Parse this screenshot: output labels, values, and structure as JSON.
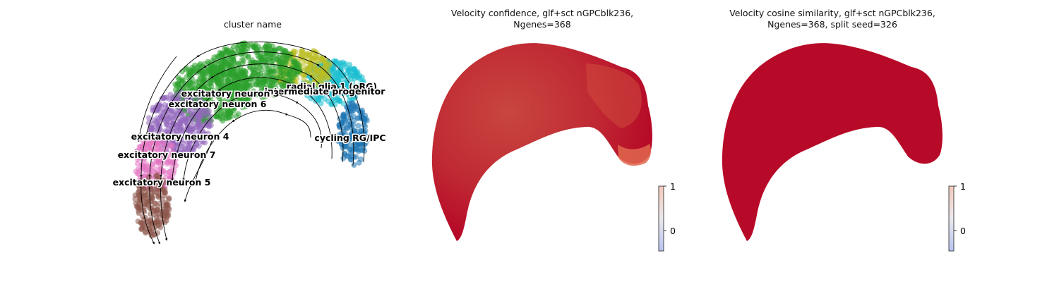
{
  "chart_data": [
    {
      "type": "scatter",
      "title": "cluster name",
      "stream_arrows": true,
      "legend": "on data",
      "clusters": [
        {
          "name": "radial glia 1 (oRG)",
          "color": "#17becf"
        },
        {
          "name": "intermediate progenitor",
          "color": "#bcbd22"
        },
        {
          "name": "excitatory neuron 3",
          "color": "#2ca02c"
        },
        {
          "name": "excitatory neuron 6",
          "color": "#2ca02c"
        },
        {
          "name": "excitatory neuron 4",
          "color": "#9467bd"
        },
        {
          "name": "excitatory neuron 7",
          "color": "#e377c2"
        },
        {
          "name": "excitatory neuron 5",
          "color": "#8c564b"
        },
        {
          "name": "cycling RG/IPC",
          "color": "#1f77b4"
        }
      ],
      "label_texts": [
        {
          "key": "rg",
          "text": "radial glia 1 (oRG)"
        },
        {
          "key": "ip",
          "text": "intermediate progenitor"
        },
        {
          "key": "en3",
          "text": "excitatory neuron 3"
        },
        {
          "key": "en6",
          "text": "excitatory neuron 6"
        },
        {
          "key": "en4",
          "text": "excitatory neuron 4"
        },
        {
          "key": "en7",
          "text": "excitatory neuron 7"
        },
        {
          "key": "en5",
          "text": "excitatory neuron 5"
        },
        {
          "key": "cyc",
          "text": "cycling RG/IPC"
        }
      ]
    },
    {
      "type": "scatter",
      "title_lines": [
        "Velocity confidence, glf+sct nGPCblk236,",
        "Ngenes=368"
      ],
      "colormap": "coolwarm",
      "colorbar_ticks": [
        1,
        0
      ],
      "color_high": "#b40426",
      "color_mid": "#e0674f",
      "color_low": "#3b4cc0"
    },
    {
      "type": "scatter",
      "title_lines": [
        "Velocity cosine similarity, glf+sct nGPCblk236,",
        "Ngenes=368, split seed=326"
      ],
      "colormap": "coolwarm",
      "colorbar_ticks": [
        1,
        0
      ],
      "color_high": "#b40426",
      "color_mid": "#c8232f",
      "color_low": "#3b4cc0"
    }
  ]
}
